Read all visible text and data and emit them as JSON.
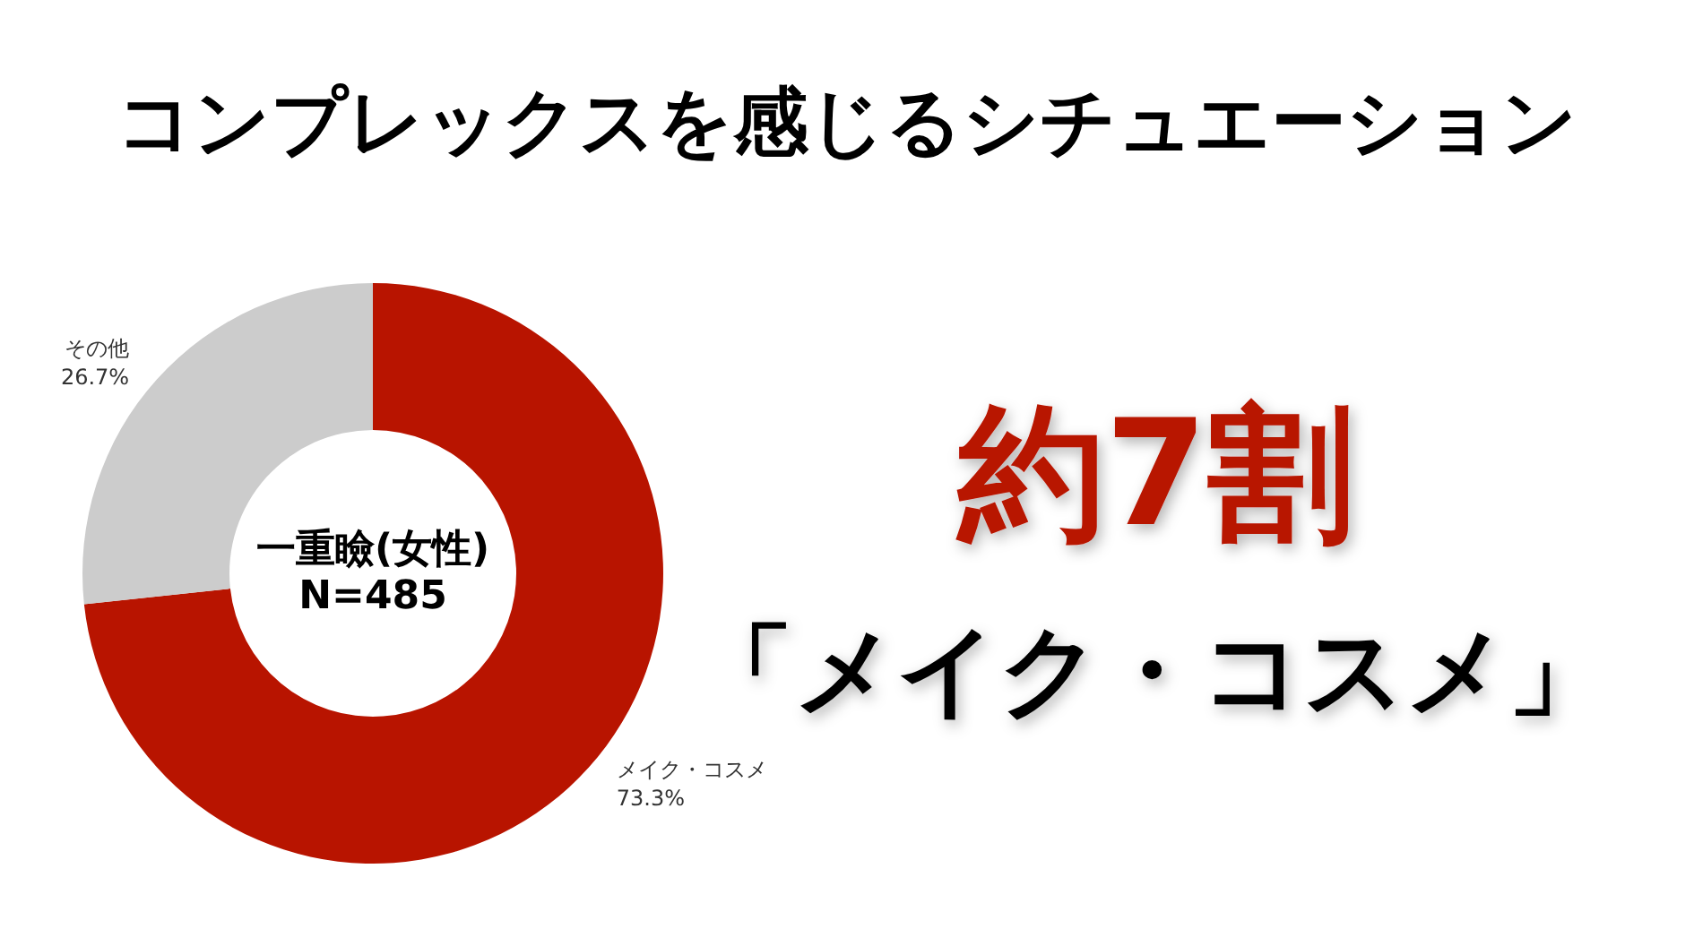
{
  "chart_data": {
    "type": "donut",
    "title": "コンプレックスを感じるシチュエーション",
    "categories": [
      "メイク・コスメ",
      "その他"
    ],
    "values": [
      73.3,
      26.7
    ],
    "colors": [
      "#b81400",
      "#cccccc"
    ],
    "value_labels": [
      "73.3%",
      "26.7%"
    ],
    "legend": false,
    "annotations": [
      "一重瞼(女性)\nN=485",
      "約7割",
      "「メイク・コスメ」"
    ]
  }
}
